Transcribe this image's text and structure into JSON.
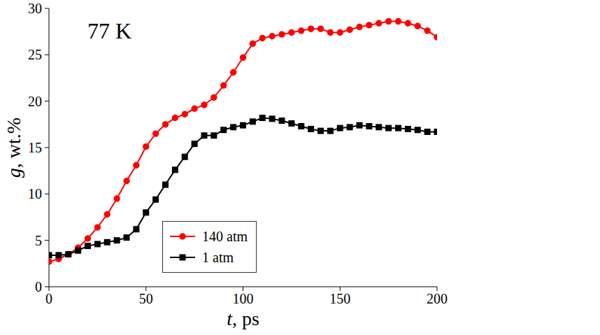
{
  "chart_data": {
    "type": "line",
    "annotation": "77 K",
    "x_label": "t, ps",
    "y_label": "g, wt.%",
    "x": [
      0,
      5,
      10,
      15,
      20,
      25,
      30,
      35,
      40,
      45,
      50,
      55,
      60,
      65,
      70,
      75,
      80,
      85,
      90,
      95,
      100,
      105,
      110,
      115,
      120,
      125,
      130,
      135,
      140,
      145,
      150,
      155,
      160,
      165,
      170,
      175,
      180,
      185,
      190,
      195,
      200
    ],
    "series": [
      {
        "name": "140 atm",
        "color": "#ff0000",
        "marker": "circle",
        "values": [
          2.7,
          3.0,
          3.5,
          4.2,
          5.2,
          6.4,
          7.8,
          9.5,
          11.4,
          13.1,
          15.1,
          16.5,
          17.5,
          18.2,
          18.6,
          19.2,
          19.6,
          20.4,
          21.7,
          23.1,
          24.7,
          26.2,
          26.8,
          27.0,
          27.2,
          27.4,
          27.6,
          27.8,
          27.8,
          27.4,
          27.4,
          27.7,
          28.0,
          28.2,
          28.4,
          28.6,
          28.6,
          28.4,
          28.1,
          27.6,
          26.9
        ]
      },
      {
        "name": "1 atm",
        "color": "#000000",
        "marker": "square",
        "values": [
          3.4,
          3.4,
          3.5,
          3.9,
          4.4,
          4.6,
          4.8,
          5.0,
          5.3,
          6.2,
          8.0,
          9.4,
          11.0,
          12.6,
          14.0,
          15.4,
          16.3,
          16.3,
          16.9,
          17.2,
          17.4,
          17.8,
          18.2,
          18.1,
          17.9,
          17.6,
          17.3,
          17.0,
          16.8,
          16.8,
          17.1,
          17.2,
          17.4,
          17.3,
          17.2,
          17.1,
          17.1,
          17.0,
          16.9,
          16.7,
          16.7
        ]
      }
    ],
    "xlim": [
      0,
      200
    ],
    "xticks": [
      0,
      50,
      100,
      150,
      200
    ],
    "ylim": [
      0,
      30
    ],
    "yticks": [
      0,
      5,
      10,
      15,
      20,
      25,
      30
    ],
    "grid": false,
    "legend": "lower center"
  }
}
